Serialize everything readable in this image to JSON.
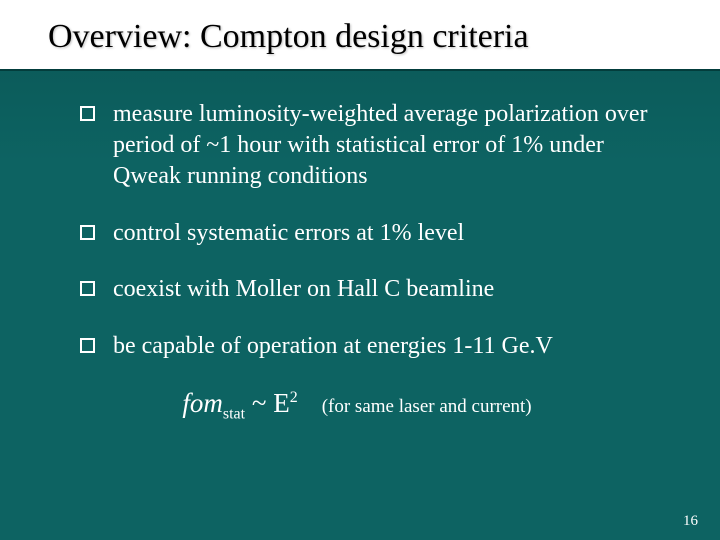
{
  "slide": {
    "title": "Overview: Compton design criteria",
    "bullets": [
      "measure luminosity-weighted average polarization over period of ~1 hour with statistical error of 1% under Qweak running conditions",
      "control systematic errors at 1% level",
      "coexist with Moller on Hall C beamline",
      "be capable of operation at energies 1-11 Ge.V"
    ],
    "formula": {
      "fom_label": "fom",
      "fom_sub": "stat",
      "tilde": " ~ ",
      "E": "E",
      "exp": "2",
      "note": "(for same laser and current)"
    },
    "page_number": "16"
  },
  "style": {
    "background_top": "#0a5655",
    "background": "#0d6362",
    "title_bg": "#ffffff",
    "title_color": "#000000",
    "text_color": "#ffffff",
    "bullet_border": "#ffffff",
    "title_fontsize": 34,
    "body_fontsize": 24,
    "formula_fontsize": 27,
    "note_fontsize": 19,
    "pagenum_fontsize": 15,
    "font_family": "Times New Roman"
  }
}
